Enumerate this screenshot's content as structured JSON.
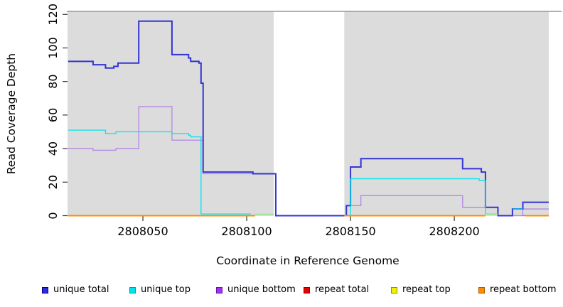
{
  "figure": {
    "background": "#ffffff"
  },
  "chart_data": {
    "type": "line",
    "subtype": "step-coverage-plot",
    "title": "",
    "xlabel": "Coordinate in Reference Genome",
    "ylabel": "Read Coverage Depth",
    "xlim": [
      2808013.7,
      2808245.5
    ],
    "ylim": [
      0,
      120
    ],
    "x_ticks": [
      2808050,
      2808100,
      2808150,
      2808200
    ],
    "y_ticks": [
      0,
      20,
      40,
      60,
      80,
      100,
      120
    ],
    "grid": "off",
    "legend_position": "bottom",
    "panel_color": "#dcdcdc",
    "panel_top_border_color": "#979797",
    "tick_color": "#333333",
    "repeat_region_band": {
      "x1": 2808113,
      "x2": 2808147,
      "color": "#ffffff"
    },
    "series": [
      {
        "name": "unique total",
        "color": "#2c2cd8",
        "line_color": "#3434d4",
        "swatch_edge": "#000090",
        "line_width": 2,
        "segments": [
          {
            "steps": [
              [
                2808014,
                92
              ],
              [
                2808026,
                90
              ],
              [
                2808032,
                88
              ],
              [
                2808036,
                89
              ],
              [
                2808038,
                91
              ],
              [
                2808048,
                116
              ],
              [
                2808064,
                96
              ],
              [
                2808072,
                94
              ],
              [
                2808073,
                92
              ],
              [
                2808077,
                91
              ],
              [
                2808078,
                79
              ],
              [
                2808079,
                26
              ],
              [
                2808103,
                25
              ],
              [
                2808114,
                0
              ],
              [
                2808148,
                6
              ],
              [
                2808150,
                29
              ],
              [
                2808155,
                34
              ],
              [
                2808204,
                28
              ],
              [
                2808213,
                26
              ],
              [
                2808215,
                5
              ],
              [
                2808221,
                0
              ],
              [
                2808228,
                4
              ],
              [
                2808233,
                8
              ]
            ],
            "end": 2808246
          }
        ]
      },
      {
        "name": "unique top",
        "color": "#00e4ec",
        "line_color": "#00e4ec",
        "swatch_edge": "#009aa4",
        "line_width": 1.3,
        "segments": [
          {
            "steps": [
              [
                2808014,
                51
              ],
              [
                2808032,
                49
              ],
              [
                2808037,
                50
              ],
              [
                2808064,
                49
              ],
              [
                2808072,
                48
              ],
              [
                2808073,
                47
              ],
              [
                2808078,
                1
              ]
            ],
            "end": 2808102
          },
          {
            "steps": [
              [
                2808149,
                0
              ],
              [
                2808150,
                22
              ],
              [
                2808212,
                21
              ],
              [
                2808215,
                1
              ]
            ],
            "end": 2808221
          },
          {
            "steps": [
              [
                2808228,
                4
              ]
            ],
            "end": 2808233
          }
        ]
      },
      {
        "name": "unique bottom",
        "color": "#a031ec",
        "line_color": "#b286e4",
        "swatch_edge": "#6a10a8",
        "line_width": 1.3,
        "segments": [
          {
            "steps": [
              [
                2808014,
                40
              ],
              [
                2808026,
                39
              ],
              [
                2808037,
                40
              ],
              [
                2808048,
                65
              ],
              [
                2808064,
                45
              ],
              [
                2808079,
                25
              ]
            ],
            "end": 2808114
          },
          {
            "steps": [
              [
                2808149,
                6
              ],
              [
                2808155,
                12
              ],
              [
                2808204,
                5
              ],
              [
                2808221,
                0
              ],
              [
                2808233,
                4
              ]
            ],
            "end": 2808246
          }
        ]
      },
      {
        "name": "repeat total",
        "color": "#e60000",
        "line_color": "#e05060",
        "swatch_edge": "#8c0000",
        "line_width": 1.2,
        "segments": [
          {
            "steps": [
              [
                2808014,
                0
              ]
            ],
            "end": 2808104
          },
          {
            "steps": [
              [
                2808147,
                0
              ]
            ],
            "end": 2808215
          },
          {
            "steps": [
              [
                2808228,
                0
              ]
            ],
            "end": 2808234
          }
        ]
      },
      {
        "name": "repeat top",
        "color": "#f0f000",
        "line_color": "#e8e800",
        "swatch_edge": "#8f8f00",
        "line_width": 1.2,
        "segments": [
          {
            "steps": [
              [
                2808014,
                0
              ]
            ],
            "end": 2808104
          },
          {
            "steps": [
              [
                2808147,
                0
              ]
            ],
            "end": 2808215
          },
          {
            "steps": [
              [
                2808234,
                0
              ]
            ],
            "end": 2808246
          }
        ]
      },
      {
        "name": "repeat bottom",
        "color": "#ff8c00",
        "line_color": "#ff8c00",
        "swatch_edge": "#a85a00",
        "line_width": 2,
        "segments": [
          {
            "steps": [
              [
                2808014,
                0
              ]
            ],
            "end": 2808104
          },
          {
            "steps": [
              [
                2808147,
                0
              ]
            ],
            "end": 2808215
          },
          {
            "steps": [
              [
                2808234,
                0
              ]
            ],
            "end": 2808246
          }
        ]
      }
    ],
    "overlap_segments": [
      {
        "note": "unique-top + repeat-top overlap",
        "color": "#98e698",
        "x1": 2808104,
        "x2": 2808113,
        "y": 0.8
      },
      {
        "note": "unique-top + repeat-top overlap",
        "color": "#98e698",
        "x1": 2808215,
        "x2": 2808221,
        "y": 0.8
      }
    ]
  }
}
